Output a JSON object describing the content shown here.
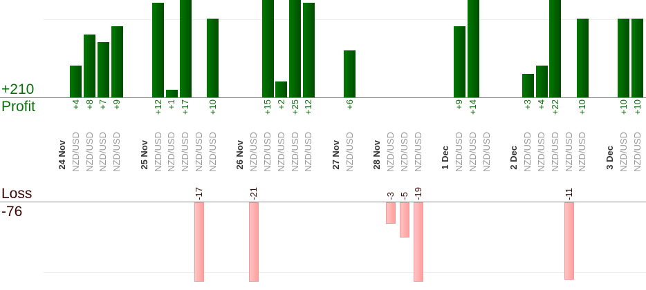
{
  "chart_data": {
    "type": "bar",
    "title": "",
    "profit": {
      "label": "Profit",
      "total": "+210",
      "color": "#006400"
    },
    "loss": {
      "label": "Loss",
      "total": "-76",
      "color": "#ff9e9e"
    },
    "groups": [
      {
        "date": "24 Nov",
        "trades": [
          {
            "pair": "NZD/USD",
            "value": 4
          },
          {
            "pair": "NZD/USD",
            "value": 8
          },
          {
            "pair": "NZD/USD",
            "value": 7
          },
          {
            "pair": "NZD/USD",
            "value": 9
          }
        ]
      },
      {
        "date": "25 Nov",
        "trades": [
          {
            "pair": "NZD/USD",
            "value": 12
          },
          {
            "pair": "NZD/USD",
            "value": 1
          },
          {
            "pair": "NZD/USD",
            "value": 17
          },
          {
            "pair": "NZD/USD",
            "value": -17
          },
          {
            "pair": "NZD/USD",
            "value": 10
          }
        ]
      },
      {
        "date": "26 Nov",
        "trades": [
          {
            "pair": "NZD/USD",
            "value": -21
          },
          {
            "pair": "NZD/USD",
            "value": 15
          },
          {
            "pair": "NZD/USD",
            "value": 2
          },
          {
            "pair": "NZD/USD",
            "value": 25
          },
          {
            "pair": "NZD/USD",
            "value": 12
          }
        ]
      },
      {
        "date": "27 Nov",
        "trades": [
          {
            "pair": "NZD/USD",
            "value": 6
          }
        ]
      },
      {
        "date": "28 Nov",
        "trades": [
          {
            "pair": "NZD/USD",
            "value": -3
          },
          {
            "pair": "NZD/USD",
            "value": -5
          },
          {
            "pair": "NZD/USD",
            "value": -19
          }
        ]
      },
      {
        "date": "1 Dec",
        "trades": [
          {
            "pair": "NZD/USD",
            "value": 9
          },
          {
            "pair": "NZD/USD",
            "value": 14
          },
          {
            "pair": "NZD/USD",
            "value": null
          }
        ]
      },
      {
        "date": "2 Dec",
        "trades": [
          {
            "pair": "NZD/USD",
            "value": 3
          },
          {
            "pair": "NZD/USD",
            "value": 4
          },
          {
            "pair": "NZD/USD",
            "value": 22
          },
          {
            "pair": "NZD/USD",
            "value": -11
          },
          {
            "pair": "NZD/USD",
            "value": 10
          }
        ]
      },
      {
        "date": "3 Dec",
        "trades": [
          {
            "pair": "NZD/USD",
            "value": 10
          },
          {
            "pair": "NZD/USD",
            "value": 10
          }
        ]
      }
    ]
  }
}
